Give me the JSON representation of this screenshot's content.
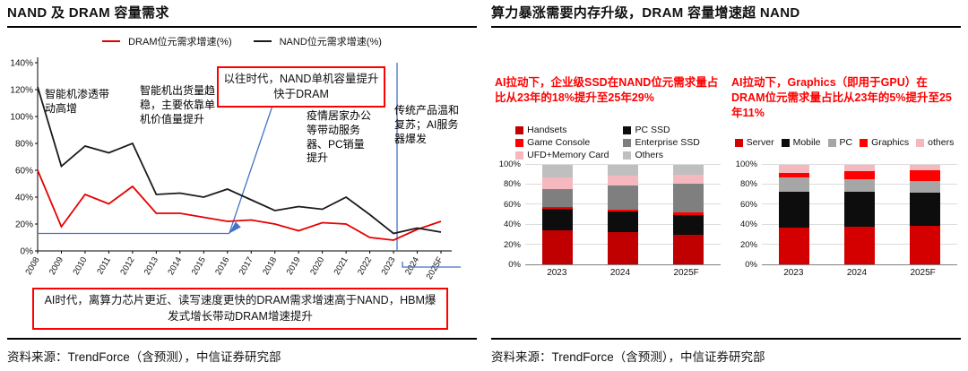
{
  "left": {
    "title": "NAND 及 DRAM 容量需求",
    "annotations": {
      "smartphone_growth": "智能机渗透带动高增",
      "shipment_stable": "智能机出货量趋稳，主要依靠单机价值量提升",
      "past_era": "以往时代，NAND单机容量提升快于DRAM",
      "pandemic": "疫情居家办公等带动服务器、PC销量提升",
      "recovery": "传统产品温和复苏；AI服务器爆发"
    },
    "bottom_note": "AI时代，离算力芯片更近、读写速度更快的DRAM需求增速高于NAND，HBM爆发式增长带动DRAM增速提升",
    "source": "资料来源：TrendForce（含预测），中信证券研究部"
  },
  "right": {
    "title": "算力暴涨需要内存升级，DRAM 容量增速超 NAND",
    "nand_chart_title": "AI拉动下，企业级SSD在NAND位元需求量占比从23年的18%提升至25年29%",
    "dram_chart_title": "AI拉动下，Graphics（即用于GPU）在DRAM位元需求量占比从23年的5%提升至25年11%",
    "source": "资料来源：TrendForce（含预测），中信证券研究部"
  },
  "chart_data": [
    {
      "type": "line",
      "title": "NAND 及 DRAM 容量需求",
      "x": [
        "2008",
        "2009",
        "2010",
        "2011",
        "2012",
        "2013",
        "2014",
        "2015",
        "2016",
        "2017",
        "2018",
        "2019",
        "2020",
        "2021",
        "2022",
        "2023",
        "2024",
        "2025F"
      ],
      "series": [
        {
          "name": "DRAM位元需求增速(%)",
          "color": "#e60000",
          "values": [
            60,
            18,
            42,
            35,
            48,
            28,
            28,
            25,
            22,
            23,
            20,
            15,
            21,
            20,
            10,
            8,
            16,
            22
          ]
        },
        {
          "name": "NAND位元需求增速(%)",
          "color": "#1a1a1a",
          "values": [
            122,
            63,
            78,
            73,
            80,
            42,
            43,
            40,
            46,
            38,
            30,
            33,
            31,
            40,
            27,
            13,
            17,
            14
          ]
        }
      ],
      "ylim": [
        0,
        140
      ],
      "ytick_step": 20,
      "yformat": "percent",
      "legend_position": "top",
      "grid": false,
      "accent_blue": "#4472c4"
    },
    {
      "type": "bar",
      "stacked": true,
      "title": "NAND位元需求量占比",
      "categories": [
        "2023",
        "2024",
        "2025F"
      ],
      "series": [
        {
          "name": "Handsets",
          "color": "#c00000",
          "values": [
            34,
            32,
            30
          ]
        },
        {
          "name": "PC SSD",
          "color": "#0d0d0d",
          "values": [
            22,
            21,
            20
          ]
        },
        {
          "name": "Game Console",
          "color": "#ff0000",
          "values": [
            2,
            2,
            2
          ]
        },
        {
          "name": "Enterprise SSD",
          "color": "#7f7f7f",
          "values": [
            18,
            24,
            29
          ]
        },
        {
          "name": "UFD+Memory Card",
          "color": "#f6b8bf",
          "values": [
            11,
            10,
            9
          ]
        },
        {
          "name": "Others",
          "color": "#bfbfbf",
          "values": [
            13,
            11,
            10
          ]
        }
      ],
      "ylim": [
        0,
        100
      ],
      "ytick_step": 20,
      "grid": true
    },
    {
      "type": "bar",
      "stacked": true,
      "title": "DRAM位元需求量占比",
      "categories": [
        "2023",
        "2024",
        "2025F"
      ],
      "series": [
        {
          "name": "Server",
          "color": "#d40000",
          "values": [
            37,
            38,
            39
          ]
        },
        {
          "name": "Mobile",
          "color": "#0d0d0d",
          "values": [
            36,
            35,
            33
          ]
        },
        {
          "name": "PC",
          "color": "#a6a6a6",
          "values": [
            14,
            13,
            12
          ]
        },
        {
          "name": "Graphics",
          "color": "#ff0000",
          "values": [
            5,
            8,
            11
          ]
        },
        {
          "name": "others",
          "color": "#f6b8bf",
          "values": [
            8,
            6,
            5
          ]
        }
      ],
      "ylim": [
        0,
        100
      ],
      "ytick_step": 20,
      "grid": true
    }
  ]
}
